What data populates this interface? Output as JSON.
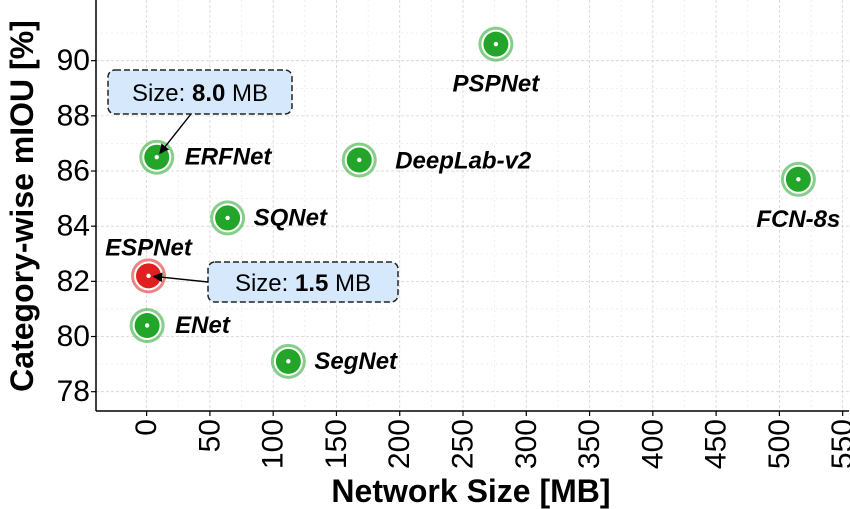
{
  "chart_data": {
    "type": "scatter",
    "xlabel": "Network Size [MB]",
    "ylabel": "Category-wise mIOU [%]",
    "xlim": [
      -40,
      555
    ],
    "ylim": [
      77.3,
      92.2
    ],
    "xticks": [
      "0",
      "50",
      "100",
      "150",
      "200",
      "250",
      "300",
      "350",
      "400",
      "450",
      "500",
      "550"
    ],
    "yticks": [
      "78",
      "80",
      "82",
      "84",
      "86",
      "88",
      "90"
    ],
    "grid": true,
    "colors": {
      "highlight": "#e02020",
      "default": "#23a52a"
    },
    "points": [
      {
        "name": "ESPNet",
        "x": 1.5,
        "y": 82.2,
        "highlight": true
      },
      {
        "name": "ENet",
        "x": 0.4,
        "y": 80.4,
        "highlight": false
      },
      {
        "name": "ERFNet",
        "x": 8.0,
        "y": 86.5,
        "highlight": false
      },
      {
        "name": "SQNet",
        "x": 64,
        "y": 84.3,
        "highlight": false
      },
      {
        "name": "SegNet",
        "x": 112,
        "y": 79.1,
        "highlight": false
      },
      {
        "name": "DeepLab-v2",
        "x": 168,
        "y": 86.4,
        "highlight": false
      },
      {
        "name": "PSPNet",
        "x": 276,
        "y": 90.6,
        "highlight": false
      },
      {
        "name": "FCN-8s",
        "x": 515,
        "y": 85.7,
        "highlight": false
      }
    ],
    "annotations": [
      {
        "target": "ERFNet",
        "prefix": "Size: ",
        "value": "8.0",
        "unit": " MB"
      },
      {
        "target": "ESPNet",
        "prefix": "Size: ",
        "value": "1.5",
        "unit": " MB"
      }
    ]
  }
}
